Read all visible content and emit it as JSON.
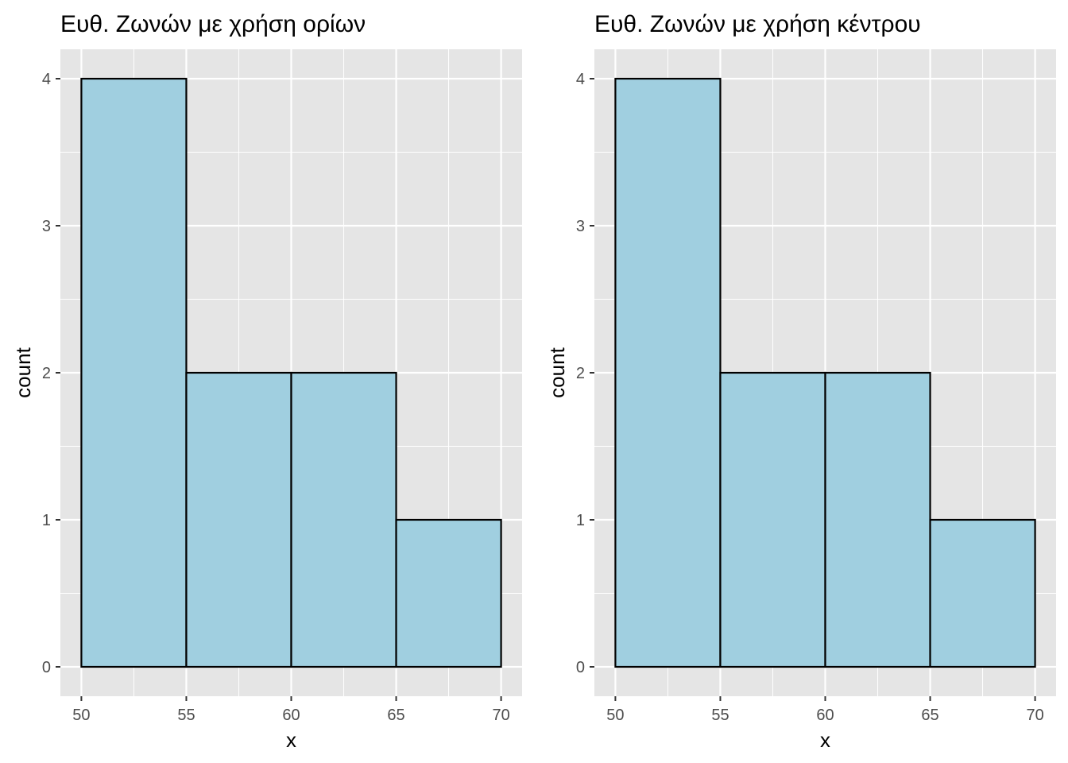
{
  "chart_data": [
    {
      "type": "bar",
      "title": "Ευθ. Ζωνών με χρήση ορίων",
      "xlabel": "x",
      "ylabel": "count",
      "bins": [
        [
          50,
          55
        ],
        [
          55,
          60
        ],
        [
          60,
          65
        ],
        [
          65,
          70
        ]
      ],
      "values": [
        4,
        2,
        2,
        1
      ],
      "x_ticks": [
        50,
        55,
        60,
        65,
        70
      ],
      "y_ticks": [
        0,
        1,
        2,
        3,
        4
      ],
      "xlim": [
        49,
        71
      ],
      "ylim": [
        -0.2,
        4.2
      ],
      "grid": true,
      "bar_fill": "#a0cfe0",
      "bar_stroke": "#000000",
      "panel_bg": "#e5e5e5",
      "grid_color": "#ffffff"
    },
    {
      "type": "bar",
      "title": "Ευθ. Ζωνών με χρήση κέντρου",
      "xlabel": "x",
      "ylabel": "count",
      "bins": [
        [
          50,
          55
        ],
        [
          55,
          60
        ],
        [
          60,
          65
        ],
        [
          65,
          70
        ]
      ],
      "values": [
        4,
        2,
        2,
        1
      ],
      "x_ticks": [
        50,
        55,
        60,
        65,
        70
      ],
      "y_ticks": [
        0,
        1,
        2,
        3,
        4
      ],
      "xlim": [
        49,
        71
      ],
      "ylim": [
        -0.2,
        4.2
      ],
      "grid": true,
      "bar_fill": "#a0cfe0",
      "bar_stroke": "#000000",
      "panel_bg": "#e5e5e5",
      "grid_color": "#ffffff"
    }
  ]
}
